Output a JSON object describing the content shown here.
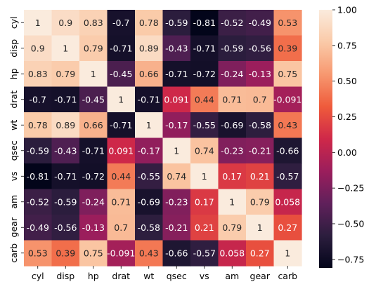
{
  "chart_data": {
    "type": "heatmap",
    "title": "",
    "xlabel": "",
    "ylabel": "",
    "x_categories": [
      "cyl",
      "disp",
      "hp",
      "drat",
      "wt",
      "qsec",
      "vs",
      "am",
      "gear",
      "carb"
    ],
    "y_categories": [
      "cyl",
      "disp",
      "hp",
      "drat",
      "wt",
      "qsec",
      "vs",
      "am",
      "gear",
      "carb"
    ],
    "values": [
      [
        1,
        0.9,
        0.83,
        -0.7,
        0.78,
        -0.59,
        -0.81,
        -0.52,
        -0.49,
        0.53
      ],
      [
        0.9,
        1,
        0.79,
        -0.71,
        0.89,
        -0.43,
        -0.71,
        -0.59,
        -0.56,
        0.39
      ],
      [
        0.83,
        0.79,
        1,
        -0.45,
        0.66,
        -0.71,
        -0.72,
        -0.24,
        -0.13,
        0.75
      ],
      [
        -0.7,
        -0.71,
        -0.45,
        1,
        -0.71,
        0.091,
        0.44,
        0.71,
        0.7,
        -0.091
      ],
      [
        0.78,
        0.89,
        0.66,
        -0.71,
        1,
        -0.17,
        -0.55,
        -0.69,
        -0.58,
        0.43
      ],
      [
        -0.59,
        -0.43,
        -0.71,
        0.091,
        -0.17,
        1,
        0.74,
        -0.23,
        -0.21,
        -0.66
      ],
      [
        -0.81,
        -0.71,
        -0.72,
        0.44,
        -0.55,
        0.74,
        1,
        0.17,
        0.21,
        -0.57
      ],
      [
        -0.52,
        -0.59,
        -0.24,
        0.71,
        -0.69,
        -0.23,
        0.17,
        1,
        0.79,
        0.058
      ],
      [
        -0.49,
        -0.56,
        -0.13,
        0.7,
        -0.58,
        -0.21,
        0.21,
        0.79,
        1,
        0.27
      ],
      [
        0.53,
        0.39,
        0.75,
        -0.091,
        0.43,
        -0.66,
        -0.57,
        0.058,
        0.27,
        1
      ]
    ],
    "labels": [
      [
        "1",
        "0.9",
        "0.83",
        "-0.7",
        "0.78",
        "-0.59",
        "-0.81",
        "-0.52",
        "-0.49",
        "0.53"
      ],
      [
        "0.9",
        "1",
        "0.79",
        "-0.71",
        "0.89",
        "-0.43",
        "-0.71",
        "-0.59",
        "-0.56",
        "0.39"
      ],
      [
        "0.83",
        "0.79",
        "1",
        "-0.45",
        "0.66",
        "-0.71",
        "-0.72",
        "-0.24",
        "-0.13",
        "0.75"
      ],
      [
        "-0.7",
        "-0.71",
        "-0.45",
        "1",
        "-0.71",
        "0.091",
        "0.44",
        "0.71",
        "0.7",
        "-0.091"
      ],
      [
        "0.78",
        "0.89",
        "0.66",
        "-0.71",
        "1",
        "-0.17",
        "-0.55",
        "-0.69",
        "-0.58",
        "0.43"
      ],
      [
        "-0.59",
        "-0.43",
        "-0.71",
        "0.091",
        "-0.17",
        "1",
        "0.74",
        "-0.23",
        "-0.21",
        "-0.66"
      ],
      [
        "-0.81",
        "-0.71",
        "-0.72",
        "0.44",
        "-0.55",
        "0.74",
        "1",
        "0.17",
        "0.21",
        "-0.57"
      ],
      [
        "-0.52",
        "-0.59",
        "-0.24",
        "0.71",
        "-0.69",
        "-0.23",
        "0.17",
        "1",
        "0.79",
        "0.058"
      ],
      [
        "-0.49",
        "-0.56",
        "-0.13",
        "0.7",
        "-0.58",
        "-0.21",
        "0.21",
        "0.79",
        "1",
        "0.27"
      ],
      [
        "0.53",
        "0.39",
        "0.75",
        "-0.091",
        "0.43",
        "-0.66",
        "-0.57",
        "0.058",
        "0.27",
        "1"
      ]
    ],
    "colorbar": {
      "min": -0.81,
      "max": 1,
      "ticks": [
        1.0,
        0.75,
        0.5,
        0.25,
        0.0,
        -0.25,
        -0.5,
        -0.75
      ],
      "tick_labels": [
        "1.00",
        "0.75",
        "0.50",
        "0.25",
        "0.00",
        "−0.25",
        "−0.50",
        "−0.75"
      ]
    },
    "colormap": [
      "#03051a",
      "#2c1e3e",
      "#60205b",
      "#9b1e5c",
      "#cf2849",
      "#ef5b3b",
      "#f79870",
      "#facaa8",
      "#faebdd"
    ]
  }
}
